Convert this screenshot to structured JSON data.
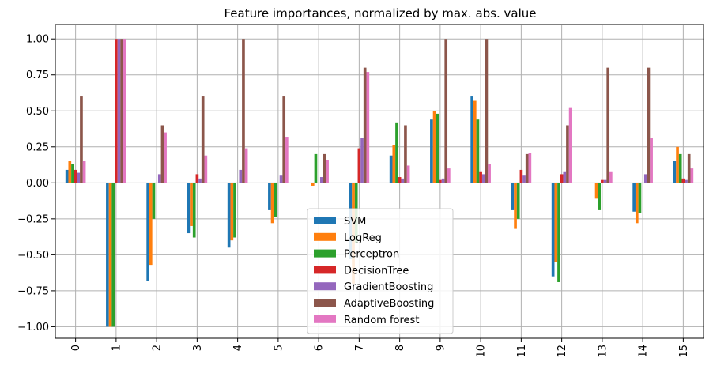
{
  "chart_data": {
    "type": "bar",
    "title": "Feature importances, normalized by max. abs. value",
    "xlabel": "",
    "ylabel": "",
    "categories": [
      "0",
      "1",
      "2",
      "3",
      "4",
      "5",
      "6",
      "7",
      "8",
      "9",
      "10",
      "11",
      "12",
      "13",
      "14",
      "15"
    ],
    "ylim": [
      -1.08,
      1.1
    ],
    "yticks": [
      -1.0,
      -0.75,
      -0.5,
      -0.25,
      0.0,
      0.25,
      0.5,
      0.75,
      1.0
    ],
    "ytick_labels": [
      "−1.00",
      "−0.75",
      "−0.50",
      "−0.25",
      "0.00",
      "0.25",
      "0.50",
      "0.75",
      "1.00"
    ],
    "grid": true,
    "legend_position": "bottom-center",
    "series": [
      {
        "name": "SVM",
        "color": "#1f77b4",
        "values": [
          0.09,
          -1.0,
          -0.68,
          -0.35,
          -0.45,
          -0.19,
          0.0,
          -0.53,
          0.19,
          0.44,
          0.6,
          -0.19,
          -0.65,
          0.0,
          -0.2,
          0.15
        ]
      },
      {
        "name": "LogReg",
        "color": "#ff7f0e",
        "values": [
          0.15,
          -1.0,
          -0.57,
          -0.3,
          -0.4,
          -0.28,
          -0.02,
          -0.7,
          0.26,
          0.5,
          0.57,
          -0.32,
          -0.55,
          -0.11,
          -0.28,
          0.25
        ]
      },
      {
        "name": "Perceptron",
        "color": "#2ca02c",
        "values": [
          0.13,
          -1.0,
          -0.25,
          -0.38,
          -0.38,
          -0.24,
          0.2,
          -0.42,
          0.42,
          0.48,
          0.44,
          -0.25,
          -0.69,
          -0.19,
          -0.21,
          0.2
        ]
      },
      {
        "name": "DecisionTree",
        "color": "#d62728",
        "values": [
          0.09,
          1.0,
          0.0,
          0.06,
          0.0,
          0.0,
          0.0,
          0.24,
          0.04,
          0.02,
          0.08,
          0.09,
          0.06,
          0.02,
          0.0,
          0.03
        ]
      },
      {
        "name": "GradientBoosting",
        "color": "#9467bd",
        "values": [
          0.07,
          1.0,
          0.06,
          0.03,
          0.09,
          0.05,
          0.04,
          0.31,
          0.03,
          0.03,
          0.06,
          0.05,
          0.08,
          0.02,
          0.06,
          0.02
        ]
      },
      {
        "name": "AdaptiveBoosting",
        "color": "#8c564b",
        "values": [
          0.6,
          1.0,
          0.4,
          0.6,
          1.0,
          0.6,
          0.2,
          0.8,
          0.4,
          1.0,
          1.0,
          0.2,
          0.4,
          0.8,
          0.8,
          0.2
        ]
      },
      {
        "name": "Random forest",
        "color": "#e377c2",
        "values": [
          0.15,
          1.0,
          0.35,
          0.19,
          0.24,
          0.32,
          0.16,
          0.77,
          0.12,
          0.1,
          0.13,
          0.21,
          0.52,
          0.08,
          0.31,
          0.1
        ]
      }
    ]
  }
}
